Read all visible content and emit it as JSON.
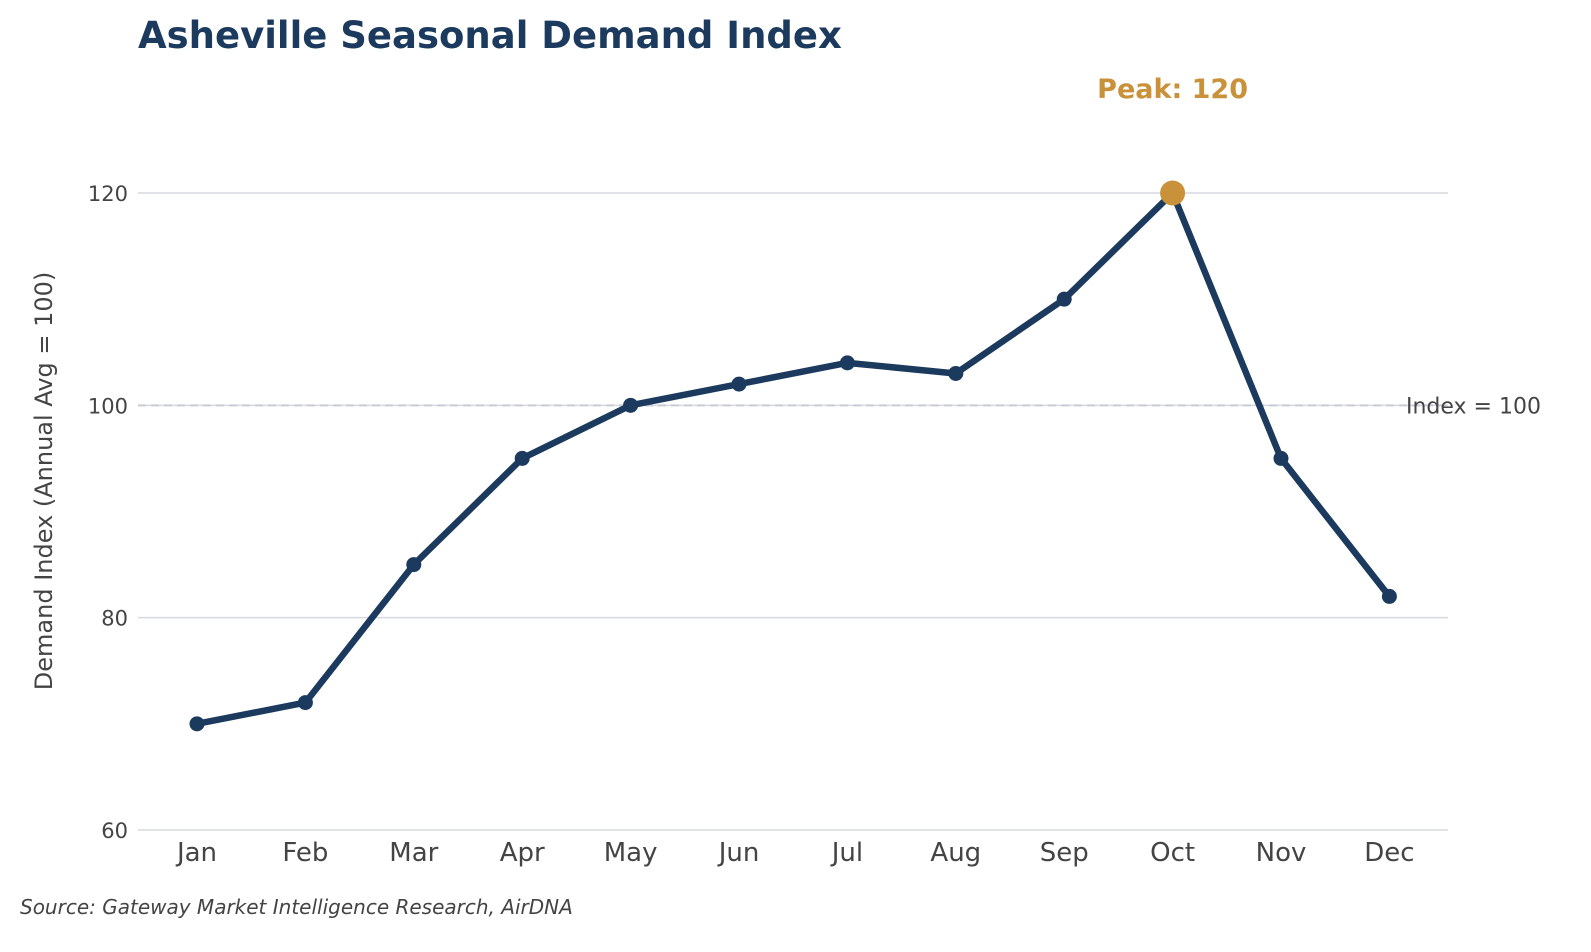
{
  "chart_data": {
    "type": "line",
    "title": "Asheville Seasonal Demand Index",
    "xlabel": "",
    "ylabel": "Demand Index (Annual Avg = 100)",
    "categories": [
      "Jan",
      "Feb",
      "Mar",
      "Apr",
      "May",
      "Jun",
      "Jul",
      "Aug",
      "Sep",
      "Oct",
      "Nov",
      "Dec"
    ],
    "series": [
      {
        "values": [
          70,
          72,
          85,
          95,
          100,
          102,
          104,
          103,
          110,
          120,
          95,
          82
        ]
      }
    ],
    "ylim": [
      60,
      125
    ],
    "yticks": [
      60,
      80,
      100,
      120
    ],
    "grid": true,
    "reference_line": {
      "value": 100,
      "label": "Index = 100"
    },
    "annotation": {
      "label": "Peak: 120",
      "category": "Oct",
      "value": 120
    },
    "source": "Source: Gateway Market Intelligence Research, AirDNA",
    "colors": {
      "line": "#1b3a5e",
      "peak": "#c8913a",
      "grid": "#d5d8e0",
      "reference": "#c8ccd4",
      "text": "#444444"
    }
  }
}
